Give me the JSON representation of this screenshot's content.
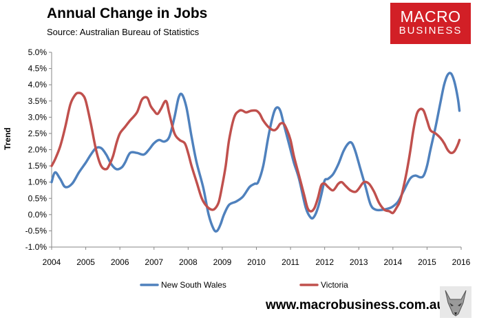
{
  "header": {
    "title": "Annual Change in Jobs",
    "subtitle": "Source: Australian Bureau of Statistics"
  },
  "logo": {
    "line1": "MACRO",
    "line2": "BUSINESS"
  },
  "footer": {
    "url": "www.macrobusiness.com.au",
    "mascot_icon": "fox-mascot-icon"
  },
  "chart_data": {
    "type": "line",
    "title": "Annual Change in Jobs",
    "xlabel": "",
    "ylabel": "Trend",
    "xlim": [
      2004,
      2016
    ],
    "ylim": [
      -1.0,
      5.0
    ],
    "x_ticks": [
      "2004",
      "2005",
      "2006",
      "2007",
      "2008",
      "2009",
      "2010",
      "2011",
      "2012",
      "2013",
      "2014",
      "2015",
      "2016"
    ],
    "y_ticks": [
      "-1.0%",
      "-0.5%",
      "0.0%",
      "0.5%",
      "1.0%",
      "1.5%",
      "2.0%",
      "2.5%",
      "3.0%",
      "3.5%",
      "4.0%",
      "4.5%",
      "5.0%"
    ],
    "legend": "bottom",
    "series": [
      {
        "name": "New South Wales",
        "color": "#4f81bd",
        "x": [
          2004.0,
          2004.1,
          2004.25,
          2004.4,
          2004.6,
          2004.8,
          2005.0,
          2005.15,
          2005.3,
          2005.45,
          2005.6,
          2005.75,
          2005.9,
          2006.05,
          2006.15,
          2006.3,
          2006.5,
          2006.7,
          2006.85,
          2007.0,
          2007.15,
          2007.3,
          2007.45,
          2007.6,
          2007.72,
          2007.82,
          2007.95,
          2008.1,
          2008.25,
          2008.45,
          2008.6,
          2008.75,
          2008.85,
          2008.95,
          2009.05,
          2009.2,
          2009.4,
          2009.6,
          2009.8,
          2009.95,
          2010.05,
          2010.2,
          2010.35,
          2010.5,
          2010.6,
          2010.7,
          2010.8,
          2010.95,
          2011.1,
          2011.25,
          2011.45,
          2011.6,
          2011.7,
          2011.8,
          2011.9,
          2012.0,
          2012.1,
          2012.25,
          2012.4,
          2012.55,
          2012.7,
          2012.8,
          2012.9,
          2013.05,
          2013.2,
          2013.35,
          2013.5,
          2013.7,
          2013.9,
          2014.0,
          2014.15,
          2014.3,
          2014.5,
          2014.65,
          2014.8,
          2014.9,
          2015.0,
          2015.1,
          2015.25,
          2015.4,
          2015.5,
          2015.6,
          2015.7,
          2015.8,
          2015.9,
          2015.95
        ],
        "values": [
          1.0,
          1.3,
          1.1,
          0.85,
          0.95,
          1.3,
          1.6,
          1.85,
          2.05,
          2.05,
          1.85,
          1.55,
          1.4,
          1.45,
          1.6,
          1.9,
          1.9,
          1.85,
          2.0,
          2.2,
          2.3,
          2.25,
          2.4,
          3.0,
          3.6,
          3.7,
          3.3,
          2.4,
          1.6,
          0.8,
          0.0,
          -0.45,
          -0.5,
          -0.3,
          0.0,
          0.3,
          0.4,
          0.55,
          0.85,
          0.95,
          1.0,
          1.5,
          2.4,
          3.1,
          3.3,
          3.2,
          2.8,
          2.2,
          1.6,
          1.1,
          0.2,
          -0.1,
          -0.05,
          0.2,
          0.6,
          1.05,
          1.1,
          1.25,
          1.55,
          1.95,
          2.2,
          2.2,
          1.95,
          1.4,
          0.85,
          0.3,
          0.15,
          0.15,
          0.2,
          0.25,
          0.4,
          0.7,
          1.1,
          1.2,
          1.15,
          1.2,
          1.5,
          2.0,
          2.7,
          3.5,
          4.0,
          4.3,
          4.35,
          4.1,
          3.6,
          3.2
        ]
      },
      {
        "name": "Victoria",
        "color": "#c0504d",
        "x": [
          2004.0,
          2004.1,
          2004.25,
          2004.4,
          2004.55,
          2004.7,
          2004.8,
          2004.9,
          2005.0,
          2005.15,
          2005.3,
          2005.45,
          2005.6,
          2005.7,
          2005.8,
          2005.9,
          2006.0,
          2006.15,
          2006.3,
          2006.5,
          2006.65,
          2006.8,
          2006.9,
          2007.0,
          2007.1,
          2007.2,
          2007.35,
          2007.45,
          2007.6,
          2007.75,
          2007.9,
          2008.0,
          2008.1,
          2008.25,
          2008.4,
          2008.55,
          2008.7,
          2008.8,
          2008.9,
          2009.0,
          2009.1,
          2009.2,
          2009.35,
          2009.5,
          2009.6,
          2009.7,
          2009.85,
          2010.0,
          2010.1,
          2010.2,
          2010.35,
          2010.5,
          2010.6,
          2010.7,
          2010.8,
          2010.9,
          2011.0,
          2011.1,
          2011.25,
          2011.4,
          2011.5,
          2011.6,
          2011.7,
          2011.8,
          2011.9,
          2012.0,
          2012.1,
          2012.25,
          2012.4,
          2012.5,
          2012.6,
          2012.75,
          2012.9,
          2013.0,
          2013.15,
          2013.3,
          2013.45,
          2013.6,
          2013.75,
          2013.9,
          2014.0,
          2014.1,
          2014.2,
          2014.3,
          2014.4,
          2014.5,
          2014.6,
          2014.7,
          2014.8,
          2014.9,
          2015.0,
          2015.1,
          2015.25,
          2015.4,
          2015.5,
          2015.6,
          2015.7,
          2015.8,
          2015.9,
          2015.95
        ],
        "values": [
          1.5,
          1.7,
          2.1,
          2.7,
          3.4,
          3.7,
          3.75,
          3.7,
          3.5,
          2.8,
          2.0,
          1.5,
          1.4,
          1.55,
          1.8,
          2.2,
          2.5,
          2.7,
          2.9,
          3.15,
          3.55,
          3.6,
          3.35,
          3.2,
          3.1,
          3.25,
          3.5,
          3.1,
          2.5,
          2.3,
          2.2,
          1.9,
          1.5,
          1.0,
          0.5,
          0.25,
          0.15,
          0.2,
          0.4,
          0.9,
          1.5,
          2.3,
          3.0,
          3.2,
          3.2,
          3.15,
          3.2,
          3.2,
          3.1,
          2.9,
          2.7,
          2.6,
          2.65,
          2.8,
          2.8,
          2.6,
          2.3,
          1.8,
          1.2,
          0.6,
          0.2,
          0.1,
          0.2,
          0.5,
          0.9,
          0.95,
          0.85,
          0.75,
          0.95,
          1.0,
          0.9,
          0.75,
          0.7,
          0.8,
          1.0,
          0.95,
          0.7,
          0.35,
          0.15,
          0.1,
          0.05,
          0.2,
          0.4,
          0.8,
          1.3,
          1.9,
          2.6,
          3.1,
          3.25,
          3.2,
          2.9,
          2.6,
          2.5,
          2.35,
          2.2,
          2.0,
          1.9,
          1.95,
          2.15,
          2.3
        ]
      }
    ]
  }
}
